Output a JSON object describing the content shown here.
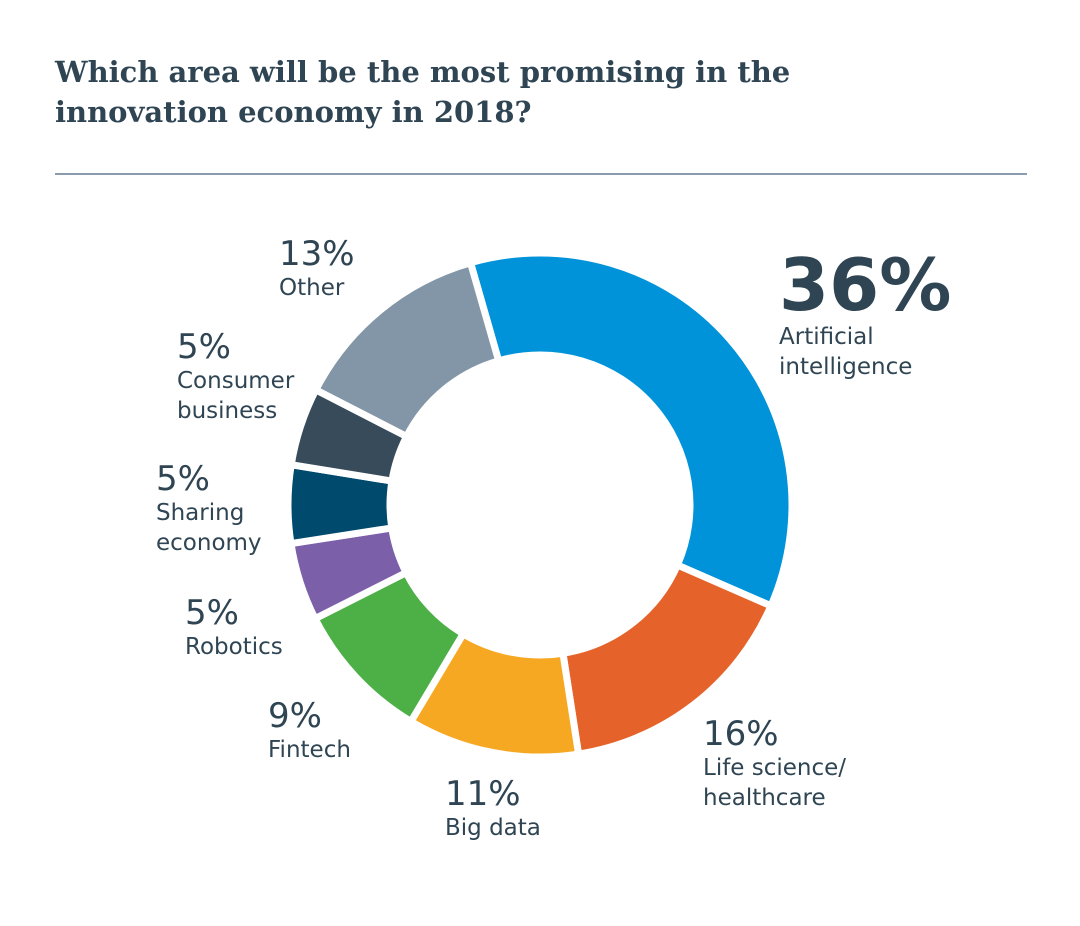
{
  "chart_data": {
    "type": "pie",
    "title": "Which area will be the most promising in the innovation economy in 2018?",
    "slices": [
      {
        "label": "Artificial intelligence",
        "label_lines": [
          "Artificial",
          "intelligence"
        ],
        "value": 36,
        "display": "36%",
        "color": "#0093d9"
      },
      {
        "label": "Life science/healthcare",
        "label_lines": [
          "Life science/",
          "healthcare"
        ],
        "value": 16,
        "display": "16%",
        "color": "#e5632a"
      },
      {
        "label": "Big data",
        "label_lines": [
          "Big data"
        ],
        "value": 11,
        "display": "11%",
        "color": "#f7a823"
      },
      {
        "label": "Fintech",
        "label_lines": [
          "Fintech"
        ],
        "value": 9,
        "display": "9%",
        "color": "#4db047"
      },
      {
        "label": "Robotics",
        "label_lines": [
          "Robotics"
        ],
        "value": 5,
        "display": "5%",
        "color": "#7b5fa8"
      },
      {
        "label": "Sharing economy",
        "label_lines": [
          "Sharing",
          "economy"
        ],
        "value": 5,
        "display": "5%",
        "color": "#004a6e"
      },
      {
        "label": "Consumer business",
        "label_lines": [
          "Consumer",
          "business"
        ],
        "value": 5,
        "display": "5%",
        "color": "#384b5a"
      },
      {
        "label": "Other",
        "label_lines": [
          "Other"
        ],
        "value": 13,
        "display": "13%",
        "color": "#8396a8"
      }
    ],
    "donut": true
  }
}
